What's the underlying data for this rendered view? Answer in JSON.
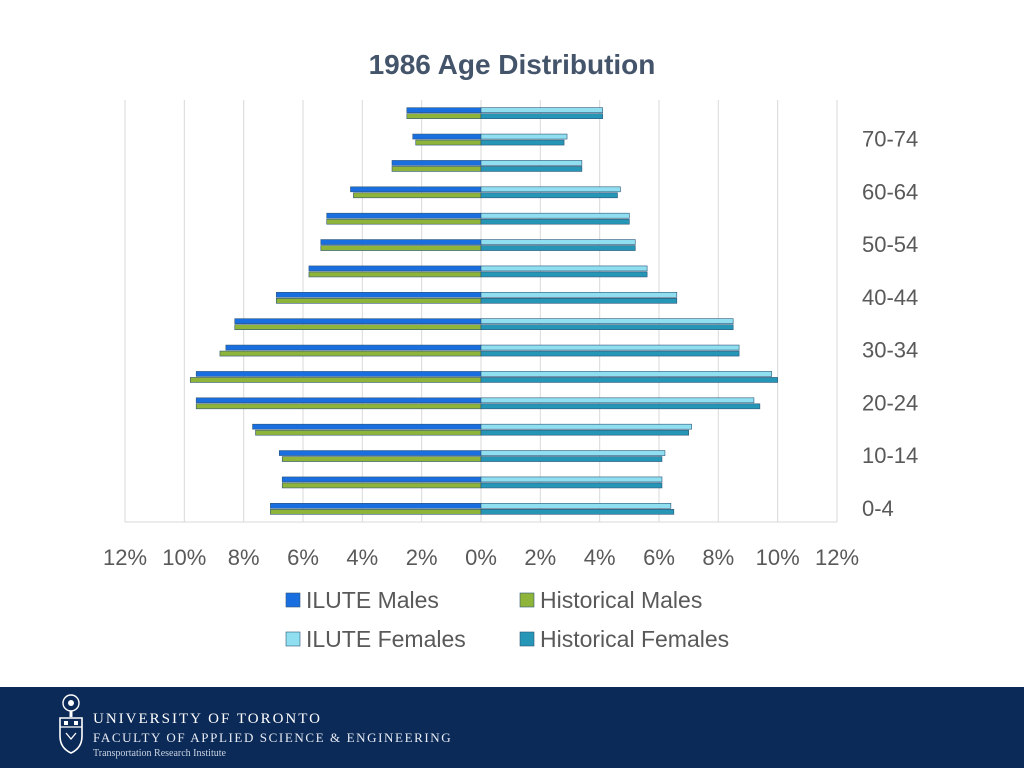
{
  "chart_data": {
    "type": "bar",
    "orientation": "horizontal-population-pyramid",
    "title": "1986 Age Distribution",
    "xlim": [
      -12,
      12
    ],
    "x_tick_labels": [
      "12%",
      "10%",
      "8%",
      "6%",
      "4%",
      "2%",
      "0%",
      "2%",
      "4%",
      "6%",
      "8%",
      "10%",
      "12%"
    ],
    "categories": [
      "0-4",
      "5-9",
      "10-14",
      "15-19",
      "20-24",
      "25-29",
      "30-34",
      "35-39",
      "40-44",
      "45-49",
      "50-54",
      "55-59",
      "60-64",
      "65-69",
      "70-74",
      "75-79"
    ],
    "category_labels_shown": [
      "0-4",
      "10-14",
      "20-24",
      "30-34",
      "40-44",
      "50-54",
      "60-64",
      "70-74"
    ],
    "series": [
      {
        "name": "ILUTE Males",
        "side": "left",
        "values": [
          7.1,
          6.7,
          6.8,
          7.7,
          9.6,
          9.6,
          8.6,
          8.3,
          6.9,
          5.8,
          5.4,
          5.2,
          4.4,
          3.0,
          2.3,
          2.5
        ]
      },
      {
        "name": "Historical Males",
        "side": "left",
        "values": [
          7.1,
          6.7,
          6.7,
          7.6,
          9.6,
          9.8,
          8.8,
          8.3,
          6.9,
          5.8,
          5.4,
          5.2,
          4.3,
          3.0,
          2.2,
          2.5
        ]
      },
      {
        "name": "ILUTE Females",
        "side": "right",
        "values": [
          6.4,
          6.1,
          6.2,
          7.1,
          9.2,
          9.8,
          8.7,
          8.5,
          6.6,
          5.6,
          5.2,
          5.0,
          4.7,
          3.4,
          2.9,
          4.1
        ]
      },
      {
        "name": "Historical Females",
        "side": "right",
        "values": [
          6.5,
          6.1,
          6.1,
          7.0,
          9.4,
          10.0,
          8.7,
          8.5,
          6.6,
          5.6,
          5.2,
          5.0,
          4.6,
          3.4,
          2.8,
          4.1
        ]
      }
    ],
    "colors": {
      "ILUTE Males": "#1a6fe0",
      "Historical Males": "#8fb43a",
      "ILUTE Females": "#8fdff0",
      "Historical Females": "#2596b6",
      "title": "#44546a",
      "label": "#595959",
      "grid": "#d9d9d9"
    },
    "legend": {
      "position": "bottom",
      "items": [
        "ILUTE Males",
        "Historical Males",
        "ILUTE Females",
        "Historical Females"
      ]
    }
  },
  "footer": {
    "line1": "UNIVERSITY OF TORONTO",
    "line2": "FACULTY OF APPLIED SCIENCE & ENGINEERING",
    "line3": "Transportation Research Institute",
    "background": "#0c2a57"
  }
}
